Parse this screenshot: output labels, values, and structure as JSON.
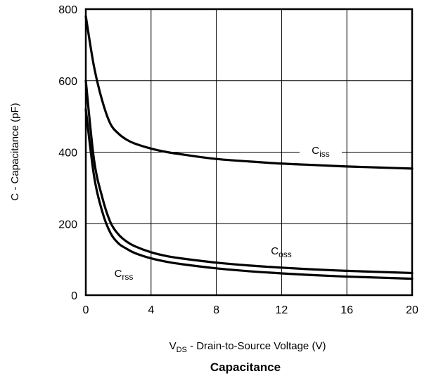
{
  "chart_data": {
    "type": "line",
    "title": "Capacitance",
    "xlabel": {
      "main": "V",
      "sub": "DS",
      "rest": " - Drain-to-Source Voltage (V)"
    },
    "ylabel": "C - Capacitance (pF)",
    "xlim": [
      0,
      20
    ],
    "ylim": [
      0,
      800
    ],
    "xticks": [
      0,
      4,
      8,
      12,
      16,
      20
    ],
    "yticks": [
      0,
      200,
      400,
      600,
      800
    ],
    "grid": true,
    "series": [
      {
        "name": {
          "main": "C",
          "sub": "iss"
        },
        "x": [
          0,
          0.5,
          1,
          1.5,
          2,
          2.5,
          3,
          4,
          5,
          6,
          8,
          10,
          12,
          14,
          16,
          18,
          20
        ],
        "y": [
          780,
          640,
          545,
          480,
          452,
          435,
          424,
          410,
          400,
          393,
          381,
          374,
          368,
          364,
          360,
          357,
          354
        ]
      },
      {
        "name": {
          "main": "C",
          "sub": "oss"
        },
        "x": [
          0,
          0.5,
          1,
          1.5,
          2,
          2.5,
          3,
          4,
          5,
          6,
          8,
          10,
          12,
          14,
          16,
          18,
          20
        ],
        "y": [
          600,
          380,
          275,
          205,
          170,
          150,
          137,
          120,
          109,
          102,
          91,
          83,
          77,
          72,
          68,
          65,
          62
        ]
      },
      {
        "name": {
          "main": "C",
          "sub": "rss"
        },
        "x": [
          0,
          0.5,
          1,
          1.5,
          2,
          2.5,
          3,
          4,
          5,
          6,
          8,
          10,
          12,
          14,
          16,
          18,
          20
        ],
        "y": [
          520,
          335,
          235,
          175,
          145,
          130,
          118,
          103,
          93,
          86,
          75,
          67,
          61,
          56,
          52,
          49,
          46
        ]
      }
    ]
  }
}
